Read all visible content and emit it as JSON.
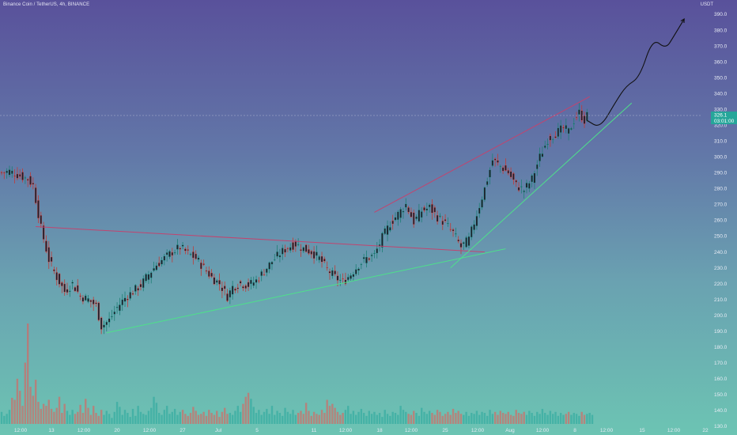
{
  "header": {
    "symbol_line": "Binance Coin / TetherUS, 4h, BINANCE",
    "currency": "USDT"
  },
  "price_tag": {
    "price": "326.1",
    "countdown": "03:01:00"
  },
  "colors": {
    "up": "#26a69a",
    "down": "#ef5350",
    "candle_body": "#1f1f2b",
    "resistance": "#c2446f",
    "support": "#4ee08a",
    "projection": "#111111"
  },
  "chart_data": {
    "type": "candlestick",
    "title": "Binance Coin / TetherUS, 4h, BINANCE",
    "ylabel": "USDT",
    "ylim": [
      127,
      395
    ],
    "y_ticks": [
      130,
      140,
      150,
      160,
      170,
      180,
      190,
      200,
      210,
      220,
      230,
      240,
      250,
      260,
      270,
      280,
      290,
      300,
      310,
      320,
      330,
      340,
      350,
      360,
      370,
      380,
      390
    ],
    "x_ticks": [
      "12:00",
      "13",
      "12:00",
      "20",
      "12:00",
      "27",
      "Jul",
      "5",
      "11",
      "12:00",
      "18",
      "12:00",
      "25",
      "12:00",
      "Aug",
      "12:00",
      "8",
      "12:00",
      "15",
      "12:00",
      "22"
    ],
    "close_path": [
      [
        0,
        290
      ],
      [
        3,
        291
      ],
      [
        7,
        288
      ],
      [
        10,
        286
      ],
      [
        12,
        282
      ],
      [
        15,
        255
      ],
      [
        18,
        235
      ],
      [
        21,
        224
      ],
      [
        24,
        215
      ],
      [
        27,
        220
      ],
      [
        30,
        212
      ],
      [
        33,
        210
      ],
      [
        36,
        206
      ],
      [
        38,
        193
      ],
      [
        41,
        197
      ],
      [
        44,
        205
      ],
      [
        47,
        211
      ],
      [
        50,
        215
      ],
      [
        53,
        219
      ],
      [
        56,
        226
      ],
      [
        59,
        232
      ],
      [
        62,
        236
      ],
      [
        65,
        240
      ],
      [
        68,
        243
      ],
      [
        71,
        239
      ],
      [
        74,
        236
      ],
      [
        77,
        230
      ],
      [
        80,
        224
      ],
      [
        83,
        220
      ],
      [
        86,
        212
      ],
      [
        88,
        218
      ],
      [
        91,
        220
      ],
      [
        94,
        219
      ],
      [
        97,
        222
      ],
      [
        100,
        228
      ],
      [
        103,
        234
      ],
      [
        106,
        239
      ],
      [
        109,
        243
      ],
      [
        112,
        245
      ],
      [
        115,
        242
      ],
      [
        118,
        240
      ],
      [
        121,
        236
      ],
      [
        124,
        229
      ],
      [
        127,
        224
      ],
      [
        130,
        221
      ],
      [
        133,
        226
      ],
      [
        136,
        232
      ],
      [
        139,
        236
      ],
      [
        142,
        238
      ],
      [
        145,
        249
      ],
      [
        148,
        258
      ],
      [
        151,
        264
      ],
      [
        154,
        270
      ],
      [
        157,
        259
      ],
      [
        160,
        266
      ],
      [
        163,
        268
      ],
      [
        166,
        262
      ],
      [
        169,
        258
      ],
      [
        172,
        252
      ],
      [
        175,
        243
      ],
      [
        178,
        248
      ],
      [
        181,
        264
      ],
      [
        184,
        280
      ],
      [
        187,
        298
      ],
      [
        190,
        294
      ],
      [
        193,
        290
      ],
      [
        196,
        282
      ],
      [
        199,
        279
      ],
      [
        202,
        286
      ],
      [
        205,
        300
      ],
      [
        208,
        311
      ],
      [
        211,
        315
      ],
      [
        214,
        318
      ],
      [
        216,
        316
      ],
      [
        218,
        323
      ],
      [
        220,
        328
      ],
      [
        222,
        323
      ],
      [
        223,
        326
      ]
    ],
    "volume": [
      12,
      8,
      10,
      14,
      26,
      24,
      45,
      33,
      18,
      61,
      100,
      37,
      28,
      44,
      22,
      15,
      20,
      18,
      24,
      15,
      12,
      16,
      27,
      11,
      20,
      13,
      9,
      14,
      10,
      12,
      19,
      11,
      25,
      16,
      9,
      18,
      11,
      8,
      14,
      9,
      13,
      10,
      6,
      12,
      22,
      17,
      9,
      14,
      11,
      7,
      15,
      8,
      18,
      12,
      10,
      9,
      13,
      16,
      27,
      21,
      11,
      9,
      14,
      18,
      10,
      12,
      15,
      9,
      12,
      14,
      10,
      8,
      11,
      17,
      13,
      9,
      10,
      12,
      8,
      14,
      11,
      9,
      13,
      7,
      12,
      16,
      10,
      11,
      9,
      13,
      18,
      12,
      20,
      27,
      31,
      25,
      17,
      11,
      14,
      9,
      12,
      15,
      10,
      18,
      9,
      13,
      11,
      8,
      16,
      12,
      10,
      14,
      9,
      11,
      13,
      10,
      21,
      13,
      8,
      12,
      10,
      9,
      14,
      11,
      24,
      18,
      20,
      16,
      12,
      9,
      11,
      14,
      18,
      10,
      13,
      9,
      12,
      15,
      11,
      8,
      13,
      10,
      12,
      9,
      11,
      7,
      14,
      10,
      8,
      12,
      11,
      9,
      18,
      14,
      12,
      10,
      9,
      13,
      11,
      8,
      16,
      12,
      10,
      13,
      11,
      9,
      14,
      12,
      8,
      10,
      12,
      9,
      15,
      11,
      13,
      10,
      9,
      12,
      8,
      11,
      10,
      13,
      9,
      12,
      11,
      8,
      14,
      10,
      12,
      9,
      13,
      11,
      10,
      12,
      9,
      8,
      14,
      11,
      10,
      12,
      9,
      13,
      11,
      8,
      12,
      10,
      15,
      11,
      9,
      13,
      10,
      12,
      8,
      11,
      9,
      10,
      12,
      9,
      11,
      10,
      8,
      12,
      9,
      10,
      11,
      9
    ],
    "trendlines": [
      {
        "name": "",
        "kind": "resistance",
        "from": [
          13,
          256
        ],
        "to": [
          184,
          240
        ]
      },
      {
        "name": "",
        "kind": "support",
        "from": [
          40,
          189
        ],
        "to": [
          192,
          242
        ]
      },
      {
        "name": "",
        "kind": "resistance",
        "from": [
          142,
          265
        ],
        "to": [
          224,
          338
        ]
      },
      {
        "name": "",
        "kind": "support",
        "from": [
          171,
          230
        ],
        "to": [
          240,
          334
        ]
      }
    ],
    "projection_path": [
      [
        223,
        323
      ],
      [
        228,
        318
      ],
      [
        234,
        335
      ],
      [
        238,
        345
      ],
      [
        243,
        350
      ],
      [
        248,
        375
      ],
      [
        253,
        368
      ],
      [
        256,
        376
      ],
      [
        260,
        387
      ]
    ],
    "grid": false,
    "legend": "none"
  }
}
